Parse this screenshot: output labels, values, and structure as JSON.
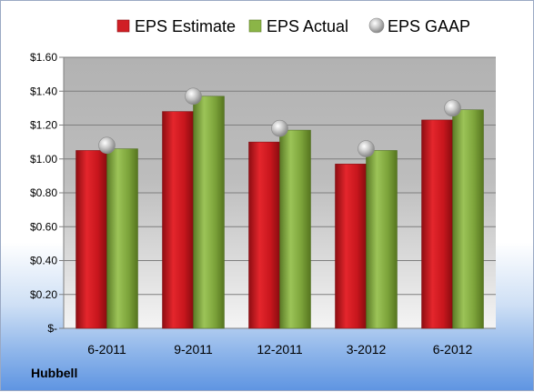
{
  "chart_data": {
    "type": "bar",
    "categories": [
      "6-2011",
      "9-2011",
      "12-2011",
      "3-2012",
      "6-2012"
    ],
    "series": [
      {
        "name": "EPS Estimate",
        "values": [
          1.05,
          1.28,
          1.1,
          0.97,
          1.23
        ],
        "color": "#c8161d"
      },
      {
        "name": "EPS Actual",
        "values": [
          1.06,
          1.37,
          1.17,
          1.05,
          1.29
        ],
        "color": "#7ca33a"
      },
      {
        "name": "EPS GAAP",
        "values": [
          1.08,
          1.37,
          1.18,
          1.06,
          1.3
        ],
        "color": "#b8b8b8",
        "marker": "sphere"
      }
    ],
    "yticks": [
      "$-",
      "$0.20",
      "$0.40",
      "$0.60",
      "$0.80",
      "$1.00",
      "$1.20",
      "$1.40",
      "$1.60"
    ],
    "ylim": [
      0,
      1.6
    ],
    "grid": true,
    "legend": "top-center"
  },
  "company": "Hubbell"
}
